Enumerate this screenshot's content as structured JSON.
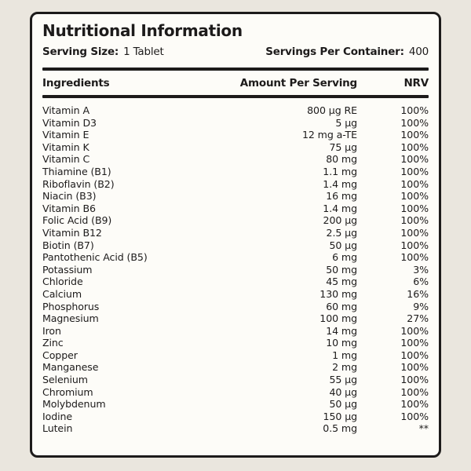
{
  "header": {
    "title": "Nutritional Information",
    "serving_size_label": "Serving Size:",
    "serving_size_value": "1 Tablet",
    "servings_per_container_label": "Servings Per Container:",
    "servings_per_container_value": "400"
  },
  "table": {
    "columns": [
      "Ingredients",
      "Amount Per Serving",
      "NRV"
    ],
    "rows": [
      {
        "name": "Vitamin A",
        "amount": "800 µg RE",
        "nrv": "100%"
      },
      {
        "name": "Vitamin D3",
        "amount": "5 µg",
        "nrv": "100%"
      },
      {
        "name": "Vitamin E",
        "amount": "12 mg a-TE",
        "nrv": "100%"
      },
      {
        "name": "Vitamin K",
        "amount": "75 µg",
        "nrv": "100%"
      },
      {
        "name": "Vitamin C",
        "amount": "80 mg",
        "nrv": "100%"
      },
      {
        "name": "Thiamine (B1)",
        "amount": "1.1 mg",
        "nrv": "100%"
      },
      {
        "name": "Riboflavin (B2)",
        "amount": "1.4 mg",
        "nrv": "100%"
      },
      {
        "name": "Niacin (B3)",
        "amount": "16 mg",
        "nrv": "100%"
      },
      {
        "name": "Vitamin B6",
        "amount": "1.4 mg",
        "nrv": "100%"
      },
      {
        "name": "Folic Acid (B9)",
        "amount": "200 µg",
        "nrv": "100%"
      },
      {
        "name": "Vitamin B12",
        "amount": "2.5 µg",
        "nrv": "100%"
      },
      {
        "name": "Biotin (B7)",
        "amount": "50 µg",
        "nrv": "100%"
      },
      {
        "name": "Pantothenic Acid (B5)",
        "amount": "6 mg",
        "nrv": "100%"
      },
      {
        "name": "Potassium",
        "amount": "50 mg",
        "nrv": "3%"
      },
      {
        "name": "Chloride",
        "amount": "45 mg",
        "nrv": "6%"
      },
      {
        "name": "Calcium",
        "amount": "130 mg",
        "nrv": "16%"
      },
      {
        "name": "Phosphorus",
        "amount": "60 mg",
        "nrv": "9%"
      },
      {
        "name": "Magnesium",
        "amount": "100 mg",
        "nrv": "27%"
      },
      {
        "name": "Iron",
        "amount": "14 mg",
        "nrv": "100%"
      },
      {
        "name": "Zinc",
        "amount": "10 mg",
        "nrv": "100%"
      },
      {
        "name": "Copper",
        "amount": "1 mg",
        "nrv": "100%"
      },
      {
        "name": "Manganese",
        "amount": "2 mg",
        "nrv": "100%"
      },
      {
        "name": "Selenium",
        "amount": "55 µg",
        "nrv": "100%"
      },
      {
        "name": "Chromium",
        "amount": "40 µg",
        "nrv": "100%"
      },
      {
        "name": "Molybdenum",
        "amount": "50 µg",
        "nrv": "100%"
      },
      {
        "name": "Iodine",
        "amount": "150 µg",
        "nrv": "100%"
      },
      {
        "name": "Lutein",
        "amount": "0.5 mg",
        "nrv": "**"
      }
    ]
  },
  "colors": {
    "background": "#eae6de",
    "card": "#fdfcf8",
    "ink": "#1d1b1b"
  }
}
